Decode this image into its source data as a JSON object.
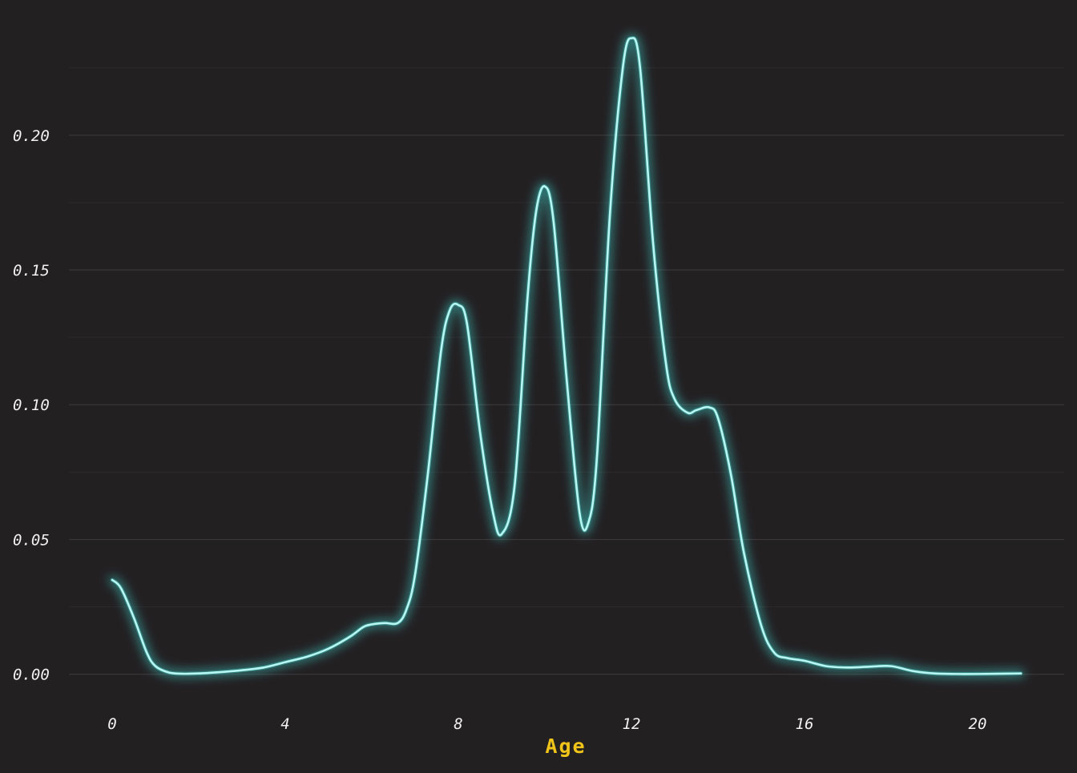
{
  "colors": {
    "background": "#232022",
    "grid_major": "#3a3638",
    "grid_minor": "#2d2a2c",
    "line": "#b8f6f2",
    "glow": "#3fd0cc",
    "axis_title": "#f0c419",
    "tick_text": "#f2f2f2"
  },
  "chart_data": {
    "type": "line",
    "subtype": "density",
    "title": "",
    "xlabel": "Age",
    "ylabel": "",
    "xlim": [
      -1,
      22
    ],
    "ylim": [
      -0.009,
      0.246
    ],
    "x_ticks": [
      0,
      4,
      8,
      12,
      16,
      20
    ],
    "x_tick_labels": [
      "0",
      "4",
      "8",
      "12",
      "16",
      "20"
    ],
    "y_ticks": [
      0.0,
      0.05,
      0.1,
      0.15,
      0.2
    ],
    "y_tick_labels": [
      "0.00",
      "0.05",
      "0.10",
      "0.15",
      "0.20"
    ],
    "y_minor_ticks": [
      0.025,
      0.075,
      0.125,
      0.175,
      0.225
    ],
    "grid": true,
    "legend": "none",
    "series": [
      {
        "x": [
          0,
          0.2,
          0.5,
          0.8,
          1.0,
          1.3,
          1.6,
          2.0,
          2.5,
          3.0,
          3.5,
          4.0,
          4.5,
          5.0,
          5.5,
          5.8,
          6.0,
          6.3,
          6.6,
          6.8,
          7.0,
          7.3,
          7.6,
          7.8,
          8.0,
          8.2,
          8.5,
          8.8,
          9.0,
          9.3,
          9.6,
          9.8,
          10.0,
          10.2,
          10.5,
          10.8,
          11.0,
          11.2,
          11.5,
          11.8,
          12.0,
          12.2,
          12.5,
          12.8,
          13.0,
          13.3,
          13.5,
          13.8,
          14.0,
          14.3,
          14.6,
          15.0,
          15.3,
          15.6,
          16.0,
          16.5,
          17.0,
          17.5,
          18.0,
          18.5,
          19.0,
          19.5,
          20.0,
          20.5,
          21.0
        ],
        "y": [
          0.035,
          0.032,
          0.021,
          0.008,
          0.003,
          0.0007,
          0.0002,
          0.0003,
          0.0008,
          0.0015,
          0.0025,
          0.0045,
          0.0065,
          0.0095,
          0.014,
          0.0175,
          0.0185,
          0.019,
          0.019,
          0.024,
          0.037,
          0.075,
          0.12,
          0.135,
          0.137,
          0.13,
          0.09,
          0.06,
          0.052,
          0.07,
          0.14,
          0.172,
          0.181,
          0.168,
          0.11,
          0.06,
          0.056,
          0.08,
          0.17,
          0.225,
          0.236,
          0.225,
          0.16,
          0.115,
          0.102,
          0.097,
          0.098,
          0.099,
          0.095,
          0.074,
          0.045,
          0.018,
          0.008,
          0.006,
          0.005,
          0.003,
          0.0025,
          0.0028,
          0.003,
          0.0012,
          0.0003,
          0.0001,
          0.0001,
          0.0002,
          0.0003
        ]
      }
    ]
  }
}
